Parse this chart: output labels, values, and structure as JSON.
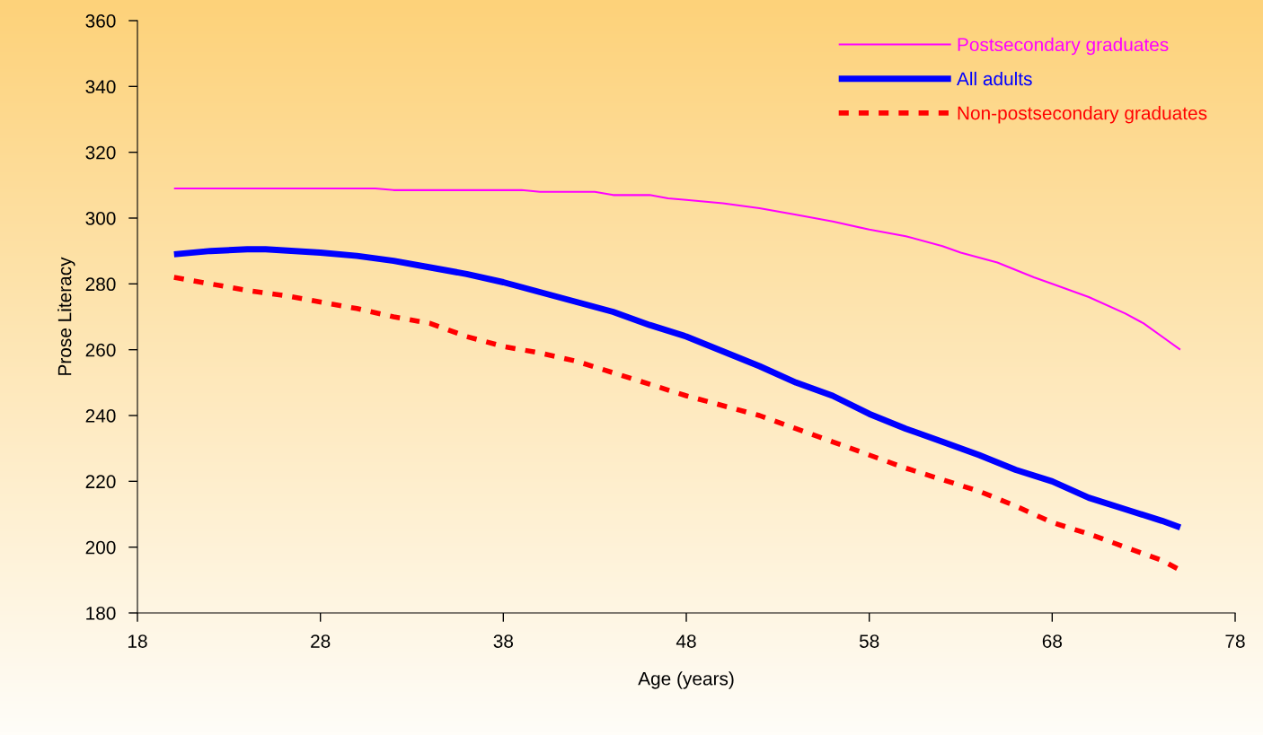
{
  "chart_data": {
    "type": "line",
    "xlabel": "Age (years)",
    "ylabel": "Prose Literacy",
    "xlim": [
      18,
      78
    ],
    "xticks": [
      18,
      28,
      38,
      48,
      58,
      68,
      78
    ],
    "ylim": [
      180,
      360
    ],
    "yticks": [
      180,
      200,
      220,
      240,
      260,
      280,
      300,
      320,
      340,
      360
    ],
    "grid": false,
    "legend": "top right",
    "marker": "none",
    "series": [
      {
        "name": "Postsecondary graduates",
        "color": "#ff00ff",
        "line_style": "solid",
        "x": [
          20,
          22,
          24,
          26,
          28,
          30,
          31,
          32,
          34,
          36,
          38,
          39,
          40,
          42,
          43,
          44,
          46,
          47,
          48,
          50,
          52,
          54,
          56,
          58,
          60,
          62,
          63,
          65,
          67,
          68,
          70,
          72,
          73,
          74,
          75
        ],
        "values": [
          309,
          309,
          309,
          309,
          309,
          309,
          309,
          308.5,
          308.5,
          308.5,
          308.5,
          308.5,
          308,
          308,
          308,
          307,
          307,
          306,
          305.5,
          304.5,
          303,
          301,
          299,
          296.5,
          294.5,
          291.5,
          289.5,
          286.5,
          282,
          280,
          276,
          271,
          268,
          264,
          260
        ]
      },
      {
        "name": "All adults",
        "color": "#0000ff",
        "line_style": "solid",
        "x": [
          20,
          22,
          24,
          25,
          28,
          30,
          32,
          34,
          36,
          38,
          40,
          42,
          44,
          46,
          48,
          50,
          52,
          54,
          56,
          58,
          60,
          62,
          64,
          66,
          68,
          70,
          72,
          74,
          75
        ],
        "values": [
          289,
          290,
          290.5,
          290.5,
          289.5,
          288.5,
          287,
          285,
          283,
          280.5,
          277.5,
          274.5,
          271.5,
          267.5,
          264,
          259.5,
          255,
          250,
          246,
          240.5,
          236,
          232,
          228,
          223.5,
          220,
          215,
          211.5,
          208,
          206
        ]
      },
      {
        "name": "Non-postsecondary graduates",
        "color": "#ff0000",
        "line_style": "dashed",
        "x": [
          20,
          22,
          24,
          26,
          28,
          30,
          32,
          34,
          36,
          38,
          40,
          42,
          44,
          46,
          48,
          50,
          52,
          54,
          56,
          58,
          60,
          62,
          64,
          66,
          68,
          70,
          72,
          74,
          75
        ],
        "values": [
          282,
          280,
          278,
          276.5,
          274.5,
          272.5,
          270,
          268,
          264,
          261,
          259,
          256.5,
          253,
          249.5,
          246,
          243,
          240,
          236,
          232,
          228,
          224,
          220.5,
          217,
          212.5,
          207.5,
          204,
          200,
          196,
          193
        ]
      }
    ]
  }
}
